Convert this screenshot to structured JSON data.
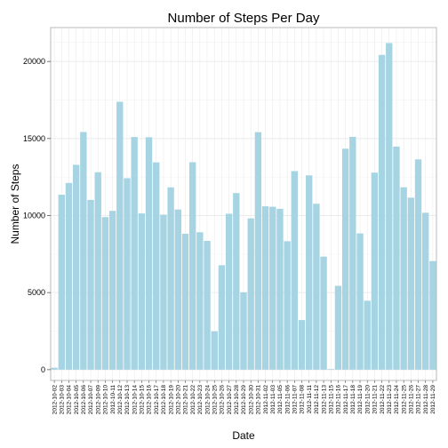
{
  "chart_data": {
    "type": "bar",
    "title": "Number of Steps Per Day",
    "xlabel": "Date",
    "ylabel": "Number of Steps",
    "ylim": [
      -700,
      22200
    ],
    "yticks": [
      0,
      5000,
      10000,
      15000,
      20000
    ],
    "bar_color": "#a6d4e2",
    "grid": true,
    "grid_color": "#ebebeb",
    "categories": [
      "2012-10-02",
      "2012-10-03",
      "2012-10-04",
      "2012-10-05",
      "2012-10-06",
      "2012-10-07",
      "2012-10-09",
      "2012-10-10",
      "2012-10-11",
      "2012-10-12",
      "2012-10-13",
      "2012-10-14",
      "2012-10-15",
      "2012-10-16",
      "2012-10-17",
      "2012-10-18",
      "2012-10-19",
      "2012-10-20",
      "2012-10-21",
      "2012-10-22",
      "2012-10-23",
      "2012-10-24",
      "2012-10-25",
      "2012-10-26",
      "2012-10-27",
      "2012-10-28",
      "2012-10-29",
      "2012-10-30",
      "2012-10-31",
      "2012-11-02",
      "2012-11-03",
      "2012-11-05",
      "2012-11-06",
      "2012-11-07",
      "2012-11-08",
      "2012-11-11",
      "2012-11-12",
      "2012-11-13",
      "2012-11-15",
      "2012-11-16",
      "2012-11-17",
      "2012-11-18",
      "2012-11-19",
      "2012-11-20",
      "2012-11-21",
      "2012-11-22",
      "2012-11-23",
      "2012-11-24",
      "2012-11-25",
      "2012-11-26",
      "2012-11-27",
      "2012-11-28",
      "2012-11-29"
    ],
    "values": [
      126,
      11352,
      12116,
      13294,
      15420,
      11015,
      12811,
      9900,
      10304,
      17382,
      12426,
      15098,
      10139,
      15084,
      13452,
      10056,
      11829,
      10395,
      8821,
      13460,
      8918,
      8355,
      2492,
      6778,
      10119,
      11458,
      5018,
      9819,
      15414,
      10600,
      10571,
      10439,
      8334,
      12883,
      3219,
      12608,
      10765,
      7336,
      41,
      5441,
      14339,
      15110,
      8841,
      4472,
      12787,
      20427,
      21194,
      14478,
      11834,
      11162,
      13646,
      10183,
      7047
    ]
  }
}
